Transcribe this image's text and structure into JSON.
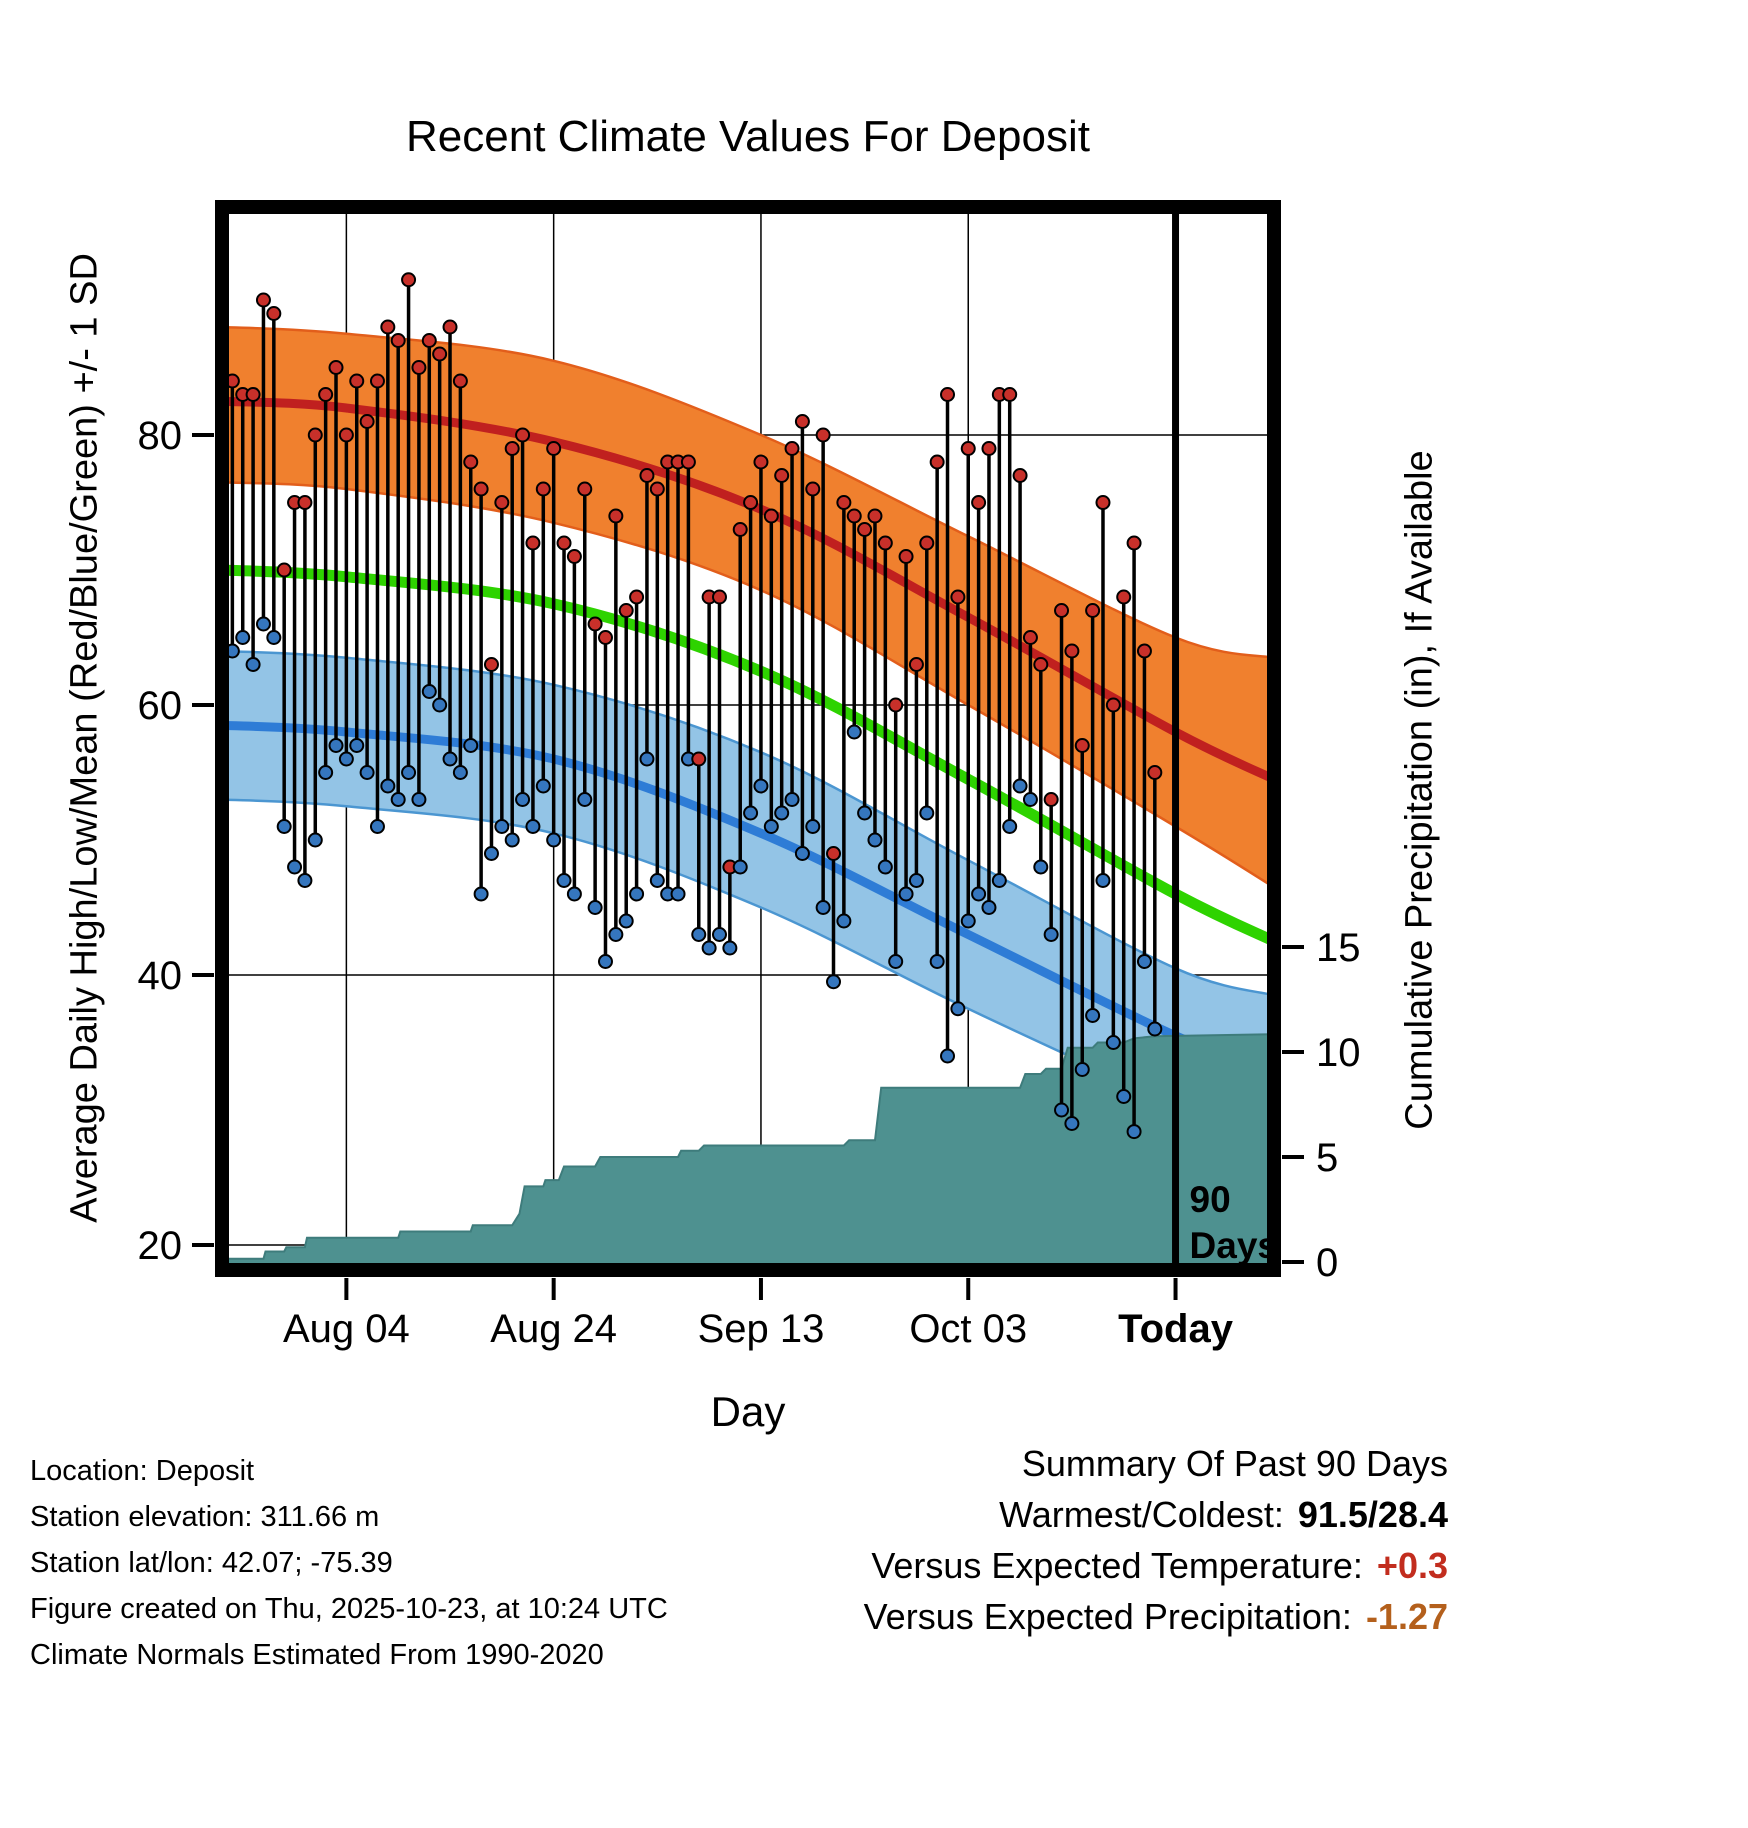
{
  "title": "Recent Climate Values For Deposit",
  "chart_data": {
    "type": "line",
    "title": "Recent Climate Values For Deposit",
    "xlabel": "Day",
    "ylabel_left": "Average Daily High/Low/Mean (Red/Blue/Green) +/- 1 SD",
    "ylabel_right": "Cumulative Precipitation (in), If Available",
    "day_range": [
      0,
      101.5
    ],
    "temp_axis_range": [
      18,
      97
    ],
    "precip_axis_range": [
      0,
      17
    ],
    "x_ticks": [
      {
        "day": 12,
        "label": "Aug 04",
        "bold": false
      },
      {
        "day": 32,
        "label": "Aug 24",
        "bold": false
      },
      {
        "day": 52,
        "label": "Sep 13",
        "bold": false
      },
      {
        "day": 72,
        "label": "Oct 03",
        "bold": false
      },
      {
        "day": 92,
        "label": "Today",
        "bold": true
      }
    ],
    "left_ticks": [
      {
        "value": 80,
        "label": "80"
      },
      {
        "value": 60,
        "label": "60"
      },
      {
        "value": 40,
        "label": "40"
      },
      {
        "value": 20,
        "label": "20"
      }
    ],
    "right_ticks": [
      {
        "value": 15,
        "label": "15"
      },
      {
        "value": 10,
        "label": "10"
      },
      {
        "value": 5,
        "label": "5"
      },
      {
        "value": 0,
        "label": "0"
      }
    ],
    "normals": {
      "days": [
        0,
        12,
        32,
        52,
        72,
        92,
        101.5
      ],
      "high_upper": [
        88,
        87.5,
        85.5,
        80,
        72.5,
        65,
        63.5
      ],
      "high_mean": [
        82.5,
        82,
        79.5,
        74.5,
        66.5,
        58,
        54.5
      ],
      "high_lower": [
        76.5,
        76,
        73.5,
        68.5,
        60,
        51,
        46.5
      ],
      "mean": [
        70,
        69.5,
        67.5,
        62.5,
        54.5,
        46,
        42.5
      ],
      "low_upper": [
        64,
        63.5,
        61.5,
        56.5,
        48.5,
        40.5,
        38.5
      ],
      "low_mean": [
        58.5,
        58,
        56,
        50.5,
        43,
        35.5,
        33
      ],
      "low_lower": [
        53,
        52.5,
        50.5,
        45,
        37.5,
        30.5,
        28
      ]
    },
    "daily": {
      "start_day": 1,
      "highs": [
        84,
        83,
        83,
        90,
        89,
        70,
        75,
        75,
        80,
        83,
        85,
        80,
        84,
        81,
        84,
        88,
        87,
        91.5,
        85,
        87,
        86,
        88,
        84,
        78,
        76,
        63,
        75,
        79,
        80,
        72,
        76,
        79,
        72,
        71,
        76,
        66,
        65,
        74,
        67,
        68,
        77,
        76,
        78,
        78,
        78,
        56,
        68,
        68,
        48,
        73,
        75,
        78,
        74,
        77,
        79,
        81,
        76,
        80,
        49,
        75,
        74,
        73,
        74,
        72,
        60,
        71,
        63,
        72,
        78,
        83,
        68,
        79,
        75,
        79,
        83,
        83,
        77,
        65,
        63,
        53,
        67,
        64,
        57,
        67,
        75,
        60,
        68,
        72,
        64,
        55
      ],
      "lows": [
        64,
        65,
        63,
        66,
        65,
        51,
        48,
        47,
        50,
        55,
        57,
        56,
        57,
        55,
        51,
        54,
        53,
        55,
        53,
        61,
        60,
        56,
        55,
        57,
        46,
        49,
        51,
        50,
        53,
        51,
        54,
        50,
        47,
        46,
        53,
        45,
        41,
        43,
        44,
        46,
        56,
        47,
        46,
        46,
        56,
        43,
        42,
        43,
        42,
        48,
        52,
        54,
        51,
        52,
        53,
        49,
        51,
        45,
        39.5,
        44,
        58,
        52,
        50,
        48,
        41,
        46,
        47,
        52,
        41,
        34,
        37.5,
        44,
        46,
        45,
        47,
        51,
        54,
        53,
        48,
        43,
        30,
        29,
        33,
        37,
        47,
        35,
        31,
        28.4,
        41,
        36
      ]
    },
    "precip_steps": [
      [
        0,
        0.15
      ],
      [
        4,
        0.15
      ],
      [
        4.2,
        0.5
      ],
      [
        6,
        0.5
      ],
      [
        6.2,
        0.7
      ],
      [
        8,
        0.7
      ],
      [
        8.2,
        1.15
      ],
      [
        17,
        1.15
      ],
      [
        17.2,
        1.45
      ],
      [
        24,
        1.45
      ],
      [
        24.2,
        1.75
      ],
      [
        28,
        1.75
      ],
      [
        28.7,
        2.3
      ],
      [
        29.2,
        3.6
      ],
      [
        31,
        3.6
      ],
      [
        31.2,
        3.9
      ],
      [
        32.5,
        3.9
      ],
      [
        33,
        4.55
      ],
      [
        36,
        4.55
      ],
      [
        36.5,
        5.0
      ],
      [
        44,
        5.0
      ],
      [
        44.3,
        5.3
      ],
      [
        46,
        5.3
      ],
      [
        46.5,
        5.55
      ],
      [
        60,
        5.55
      ],
      [
        60.5,
        5.8
      ],
      [
        63,
        5.8
      ],
      [
        63.6,
        8.3
      ],
      [
        77,
        8.3
      ],
      [
        77.5,
        8.95
      ],
      [
        79,
        8.95
      ],
      [
        79.5,
        9.2
      ],
      [
        81,
        9.2
      ],
      [
        81.6,
        10.2
      ],
      [
        84,
        10.2
      ],
      [
        84.5,
        10.45
      ],
      [
        87,
        10.45
      ],
      [
        88,
        10.65
      ],
      [
        90,
        10.75
      ],
      [
        101.5,
        10.85
      ]
    ],
    "ninety_day_marker": {
      "day": 92,
      "label_line1": "90",
      "label_line2": "Days"
    },
    "colors": {
      "high_band": "#F0802E",
      "high_band_edge": "#E25E1B",
      "high_mean": "#C0201F",
      "mean_line": "#2ED300",
      "low_band": "#93C4E6",
      "low_band_edge": "#4B96D1",
      "low_mean": "#2E7CD6",
      "precip_fill": "#4E9190",
      "precip_edge": "#3E7C7C",
      "high_dot": "#C8302A",
      "low_dot": "#3576BE",
      "stem": "#000000",
      "grid": "#000000",
      "frame": "#000000"
    }
  },
  "footer": {
    "lines": [
      "Location: Deposit",
      "Station elevation: 311.66 m",
      "Station lat/lon: 42.07; -75.39",
      "Figure created on Thu, 2025-10-23, at 10:24 UTC",
      "Climate Normals Estimated From 1990-2020"
    ]
  },
  "summary": {
    "title": "Summary Of Past 90 Days",
    "warmest_coldest_label": "Warmest/Coldest:",
    "warmest_coldest_value": "91.5/28.4",
    "vs_temp_label": "Versus Expected Temperature:",
    "vs_temp_value": "+0.3",
    "vs_temp_color": "#C22D1E",
    "vs_precip_label": "Versus Expected Precipitation:",
    "vs_precip_value": "-1.27",
    "vs_precip_color": "#B4601C"
  }
}
